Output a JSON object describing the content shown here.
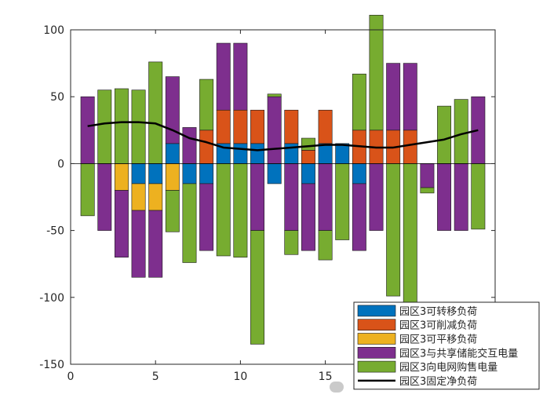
{
  "chart_data": {
    "type": "bar",
    "stacked": true,
    "title": "",
    "xlabel": "",
    "ylabel": "",
    "xlim": [
      0,
      25
    ],
    "ylim": [
      -150,
      100
    ],
    "xticks": [
      0,
      5,
      10,
      15
    ],
    "yticks": [
      -150,
      -100,
      -50,
      0,
      50,
      100
    ],
    "x": [
      1,
      2,
      3,
      4,
      5,
      6,
      7,
      8,
      9,
      10,
      11,
      12,
      13,
      14,
      15,
      16,
      17,
      18,
      19,
      20,
      21,
      22,
      23,
      24
    ],
    "legend_position": "bottom-right",
    "series": [
      {
        "name": "园区3可转移负荷",
        "kind": "bar",
        "color": "#0072BD",
        "values": [
          0,
          0,
          0,
          -15,
          -15,
          15,
          -15,
          -15,
          15,
          15,
          15,
          -15,
          15,
          -15,
          15,
          15,
          -15,
          0,
          0,
          0,
          0,
          0,
          0,
          0
        ]
      },
      {
        "name": "园区3可削减负荷",
        "kind": "bar",
        "color": "#D95319",
        "values": [
          0,
          0,
          0,
          0,
          0,
          0,
          0,
          25,
          25,
          25,
          25,
          0,
          25,
          10,
          25,
          0,
          25,
          25,
          25,
          25,
          0,
          0,
          0,
          0
        ]
      },
      {
        "name": "园区3可平移负荷",
        "kind": "bar",
        "color": "#EDB120",
        "values": [
          0,
          0,
          -20,
          -20,
          -20,
          -20,
          0,
          0,
          0,
          0,
          0,
          0,
          0,
          0,
          0,
          0,
          0,
          0,
          0,
          0,
          0,
          0,
          0,
          0
        ]
      },
      {
        "name": "园区3与共享储能交互电量",
        "kind": "bar",
        "color": "#7E2F8E",
        "values": [
          50,
          -50,
          -50,
          -50,
          -50,
          50,
          27,
          -50,
          50,
          50,
          -50,
          50,
          -50,
          -50,
          -50,
          0,
          -50,
          -50,
          50,
          50,
          -18,
          -50,
          -50,
          50
        ]
      },
      {
        "name": "园区3向电网购售电量",
        "kind": "bar",
        "color": "#77AC30",
        "values": [
          -39,
          55,
          56,
          55,
          76,
          -31,
          -59,
          38,
          -69,
          -70,
          -85,
          2,
          -18,
          9,
          -22,
          -57,
          42,
          86,
          -99,
          -125,
          -4,
          43,
          48,
          -49
        ]
      },
      {
        "name": "园区3固定净负荷",
        "kind": "line",
        "color": "#000000",
        "values": [
          28,
          30,
          31,
          31,
          30,
          25,
          19,
          16,
          12,
          11,
          10,
          11,
          12,
          13,
          14,
          14,
          13,
          12,
          12,
          14,
          16,
          18,
          22,
          25
        ]
      }
    ]
  }
}
